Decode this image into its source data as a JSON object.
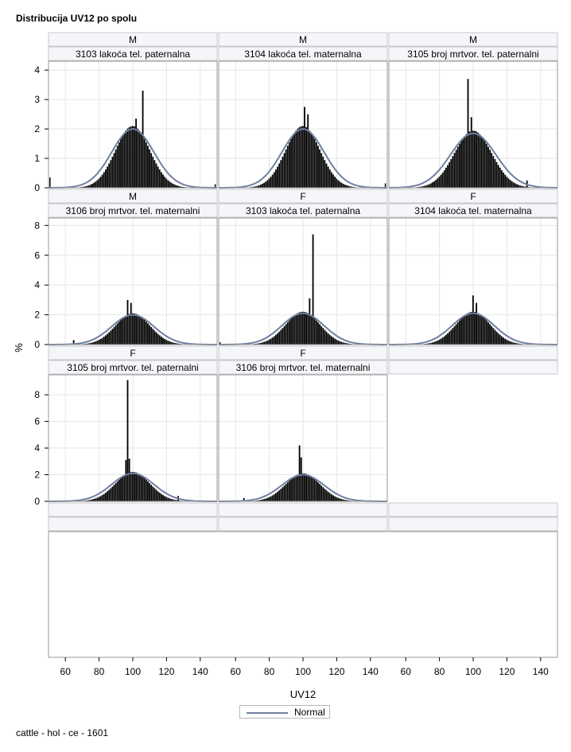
{
  "title": "Distribucija UV12 po spolu",
  "footnote": "cattle - hol - ce - 1601",
  "colors": {
    "bars": "#000000",
    "normal_curve": "#6f7fa1",
    "grid": "#e6e6e6",
    "header_bg": "#f5f6fa",
    "frame": "#9a9a9a"
  },
  "chart_data": {
    "type": "bar",
    "chart_kind": "paneled histogram with fitted normal curve",
    "xlabel": "UV12",
    "ylabel": "%",
    "xlim": [
      50,
      150
    ],
    "x_ticks": [
      60,
      80,
      100,
      120,
      140
    ],
    "grid": true,
    "legend_position": "bottom",
    "legend": [
      {
        "name": "Normal",
        "color": "#6f7fa1"
      }
    ],
    "rows": [
      {
        "ylim": [
          0,
          4.3
        ],
        "y_ticks": [
          0,
          1,
          2,
          3,
          4
        ]
      },
      {
        "ylim": [
          0,
          8.5
        ],
        "y_ticks": [
          0,
          2,
          4,
          6,
          8
        ]
      },
      {
        "ylim": [
          0,
          9.5
        ],
        "y_ticks": [
          0,
          2,
          4,
          6,
          8
        ]
      }
    ],
    "panels": [
      {
        "sex": "M",
        "trait": "3103 lakoća tel. paternalna",
        "row": 0,
        "col": 0,
        "mean": 100,
        "sd": 12.5,
        "normal_peak": 2.0,
        "spikes": [
          {
            "x": 106,
            "value": 3.3
          },
          {
            "x": 102,
            "value": 2.35
          },
          {
            "x": 51,
            "value": 0.35
          },
          {
            "x": 149,
            "value": 0.12
          }
        ]
      },
      {
        "sex": "M",
        "trait": "3104 lakoća tel. maternalna",
        "row": 0,
        "col": 1,
        "mean": 100,
        "sd": 12.5,
        "normal_peak": 2.0,
        "spikes": [
          {
            "x": 101,
            "value": 2.75
          },
          {
            "x": 103,
            "value": 2.5
          },
          {
            "x": 149,
            "value": 0.15
          }
        ]
      },
      {
        "sex": "M",
        "trait": "3105 broj mrtvor. tel. paternalni",
        "row": 0,
        "col": 2,
        "mean": 100,
        "sd": 13.5,
        "normal_peak": 1.85,
        "spikes": [
          {
            "x": 97,
            "value": 3.7
          },
          {
            "x": 99,
            "value": 2.4
          },
          {
            "x": 132,
            "value": 0.25
          }
        ]
      },
      {
        "sex": "M",
        "trait": "3106 broj mrtvor. tel. maternalni",
        "row": 1,
        "col": 0,
        "mean": 100,
        "sd": 12.5,
        "normal_peak": 2.0,
        "spikes": [
          {
            "x": 97,
            "value": 3.0
          },
          {
            "x": 99,
            "value": 2.8
          },
          {
            "x": 65,
            "value": 0.3
          }
        ]
      },
      {
        "sex": "F",
        "trait": "3103 lakoća tel. paternalna",
        "row": 1,
        "col": 1,
        "mean": 100,
        "sd": 12.5,
        "normal_peak": 2.1,
        "spikes": [
          {
            "x": 106,
            "value": 7.4
          },
          {
            "x": 104,
            "value": 3.1
          },
          {
            "x": 51,
            "value": 0.15
          }
        ]
      },
      {
        "sex": "F",
        "trait": "3104 lakoća tel. maternalna",
        "row": 1,
        "col": 2,
        "mean": 100,
        "sd": 12.5,
        "normal_peak": 2.1,
        "spikes": [
          {
            "x": 100,
            "value": 3.3
          },
          {
            "x": 102,
            "value": 2.8
          }
        ]
      },
      {
        "sex": "F",
        "trait": "3105 broj mrtvor. tel. paternalni",
        "row": 2,
        "col": 0,
        "mean": 100,
        "sd": 12.5,
        "normal_peak": 2.1,
        "spikes": [
          {
            "x": 97,
            "value": 9.1
          },
          {
            "x": 96,
            "value": 3.1
          },
          {
            "x": 98,
            "value": 3.2
          },
          {
            "x": 127,
            "value": 0.4
          }
        ]
      },
      {
        "sex": "F",
        "trait": "3106 broj mrtvor. tel. maternalni",
        "row": 2,
        "col": 1,
        "mean": 100,
        "sd": 12.5,
        "normal_peak": 2.0,
        "spikes": [
          {
            "x": 98,
            "value": 4.2
          },
          {
            "x": 99,
            "value": 3.3
          },
          {
            "x": 65,
            "value": 0.25
          }
        ]
      }
    ]
  }
}
